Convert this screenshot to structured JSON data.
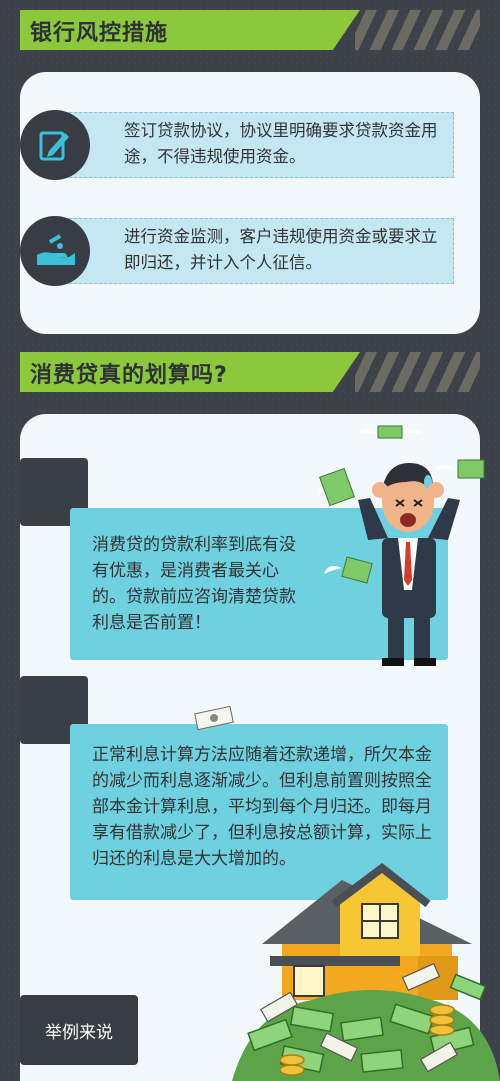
{
  "section1": {
    "title": "银行风控措施",
    "items": [
      {
        "text": "签订贷款协议，协议里明确要求贷款资金用途，不得违规使用资金。",
        "icon": "document-pen-icon"
      },
      {
        "text": "进行资金监测，客户违规使用资金或要求立即归还，并计入个人征信。",
        "icon": "hand-money-icon"
      }
    ]
  },
  "section2": {
    "title": "消费贷真的划算吗?",
    "bubble1": "消费贷的贷款利率到底有没有优惠，是消费者最关心的。贷款前应咨询清楚贷款利息是否前置！",
    "bubble2": "正常利息计算方法应随着还款递增，所欠本金的减少而利息逐渐减少。但利息前置则按照全部本金计算利息，平均到每个月归还。即每月享有借款减少了，但利息按总额计算，实际上归还的利息是大大增加的。",
    "example_button": "举例来说"
  },
  "colors": {
    "accent_green": "#8cc83c",
    "bubble_blue": "#6fd0e0",
    "dark": "#3d4149"
  }
}
